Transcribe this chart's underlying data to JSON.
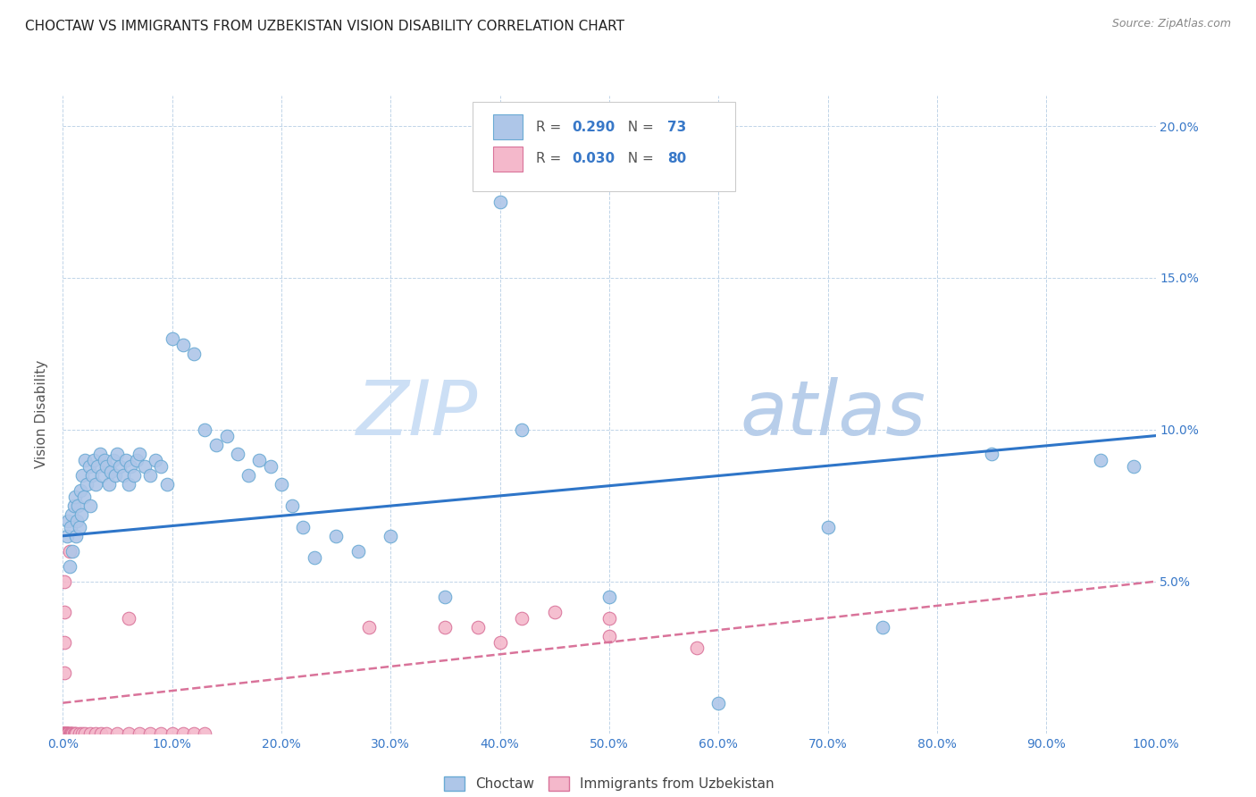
{
  "title": "CHOCTAW VS IMMIGRANTS FROM UZBEKISTAN VISION DISABILITY CORRELATION CHART",
  "source": "Source: ZipAtlas.com",
  "ylabel": "Vision Disability",
  "xmin": 0.0,
  "xmax": 1.0,
  "ymin": 0.0,
  "ymax": 0.21,
  "xticks": [
    0.0,
    0.1,
    0.2,
    0.3,
    0.4,
    0.5,
    0.6,
    0.7,
    0.8,
    0.9,
    1.0
  ],
  "xticklabels": [
    "0.0%",
    "10.0%",
    "20.0%",
    "30.0%",
    "40.0%",
    "50.0%",
    "60.0%",
    "70.0%",
    "80.0%",
    "90.0%",
    "100.0%"
  ],
  "yticks": [
    0.0,
    0.05,
    0.1,
    0.15,
    0.2
  ],
  "yticklabels_right": [
    "",
    "5.0%",
    "10.0%",
    "15.0%",
    "20.0%"
  ],
  "choctaw_color": "#aec6e8",
  "choctaw_edge_color": "#6aaad4",
  "uzbekistan_color": "#f4b8cb",
  "uzbekistan_edge_color": "#d9739a",
  "choctaw_line_color": "#2e75c8",
  "uzbekistan_line_color": "#d9739a",
  "watermark_zip_color": "#ccdff0",
  "watermark_atlas_color": "#c8d8e8",
  "R_choctaw": "0.290",
  "N_choctaw": "73",
  "R_uzbekistan": "0.030",
  "N_uzbekistan": "80",
  "legend_label_choctaw": "Choctaw",
  "legend_label_uzbekistan": "Immigrants from Uzbekistan",
  "choctaw_line_x0": 0.0,
  "choctaw_line_y0": 0.065,
  "choctaw_line_x1": 1.0,
  "choctaw_line_y1": 0.098,
  "uzbekistan_line_x0": 0.0,
  "uzbekistan_line_y0": 0.01,
  "uzbekistan_line_x1": 1.0,
  "uzbekistan_line_y1": 0.05,
  "choctaw_x": [
    0.004,
    0.005,
    0.006,
    0.007,
    0.008,
    0.009,
    0.01,
    0.011,
    0.012,
    0.013,
    0.014,
    0.015,
    0.016,
    0.017,
    0.018,
    0.019,
    0.02,
    0.022,
    0.024,
    0.025,
    0.027,
    0.028,
    0.03,
    0.032,
    0.034,
    0.036,
    0.038,
    0.04,
    0.042,
    0.044,
    0.046,
    0.048,
    0.05,
    0.052,
    0.055,
    0.058,
    0.06,
    0.062,
    0.065,
    0.068,
    0.07,
    0.075,
    0.08,
    0.085,
    0.09,
    0.095,
    0.1,
    0.11,
    0.12,
    0.13,
    0.14,
    0.15,
    0.16,
    0.17,
    0.18,
    0.19,
    0.2,
    0.21,
    0.22,
    0.23,
    0.25,
    0.27,
    0.3,
    0.35,
    0.4,
    0.42,
    0.5,
    0.6,
    0.7,
    0.75,
    0.85,
    0.95,
    0.98
  ],
  "choctaw_y": [
    0.065,
    0.07,
    0.055,
    0.068,
    0.072,
    0.06,
    0.075,
    0.078,
    0.065,
    0.07,
    0.075,
    0.068,
    0.08,
    0.072,
    0.085,
    0.078,
    0.09,
    0.082,
    0.088,
    0.075,
    0.085,
    0.09,
    0.082,
    0.088,
    0.092,
    0.085,
    0.09,
    0.088,
    0.082,
    0.086,
    0.09,
    0.085,
    0.092,
    0.088,
    0.085,
    0.09,
    0.082,
    0.088,
    0.085,
    0.09,
    0.092,
    0.088,
    0.085,
    0.09,
    0.088,
    0.082,
    0.13,
    0.128,
    0.125,
    0.1,
    0.095,
    0.098,
    0.092,
    0.085,
    0.09,
    0.088,
    0.082,
    0.075,
    0.068,
    0.058,
    0.065,
    0.06,
    0.065,
    0.045,
    0.175,
    0.1,
    0.045,
    0.01,
    0.068,
    0.035,
    0.092,
    0.09,
    0.088
  ],
  "uzbekistan_x": [
    0.001,
    0.001,
    0.001,
    0.001,
    0.001,
    0.001,
    0.001,
    0.001,
    0.001,
    0.001,
    0.001,
    0.001,
    0.001,
    0.001,
    0.001,
    0.001,
    0.001,
    0.001,
    0.001,
    0.001,
    0.002,
    0.002,
    0.002,
    0.002,
    0.002,
    0.002,
    0.002,
    0.002,
    0.002,
    0.002,
    0.003,
    0.003,
    0.003,
    0.003,
    0.003,
    0.003,
    0.004,
    0.004,
    0.004,
    0.004,
    0.005,
    0.005,
    0.005,
    0.005,
    0.006,
    0.006,
    0.007,
    0.007,
    0.008,
    0.008,
    0.009,
    0.01,
    0.011,
    0.012,
    0.015,
    0.018,
    0.02,
    0.025,
    0.03,
    0.035,
    0.04,
    0.05,
    0.06,
    0.07,
    0.08,
    0.09,
    0.1,
    0.11,
    0.12,
    0.13,
    0.38,
    0.42,
    0.45,
    0.5,
    0.58,
    0.35,
    0.4,
    0.28,
    0.06,
    0.5
  ],
  "uzbekistan_y": [
    0.0,
    0.0,
    0.0,
    0.0,
    0.0,
    0.0,
    0.0,
    0.0,
    0.0,
    0.0,
    0.0,
    0.0,
    0.0,
    0.0,
    0.0,
    0.0,
    0.02,
    0.03,
    0.04,
    0.05,
    0.0,
    0.0,
    0.0,
    0.0,
    0.0,
    0.0,
    0.0,
    0.0,
    0.0,
    0.0,
    0.0,
    0.0,
    0.0,
    0.0,
    0.0,
    0.0,
    0.0,
    0.0,
    0.0,
    0.0,
    0.0,
    0.0,
    0.0,
    0.0,
    0.06,
    0.0,
    0.0,
    0.0,
    0.0,
    0.0,
    0.0,
    0.0,
    0.0,
    0.0,
    0.0,
    0.0,
    0.0,
    0.0,
    0.0,
    0.0,
    0.0,
    0.0,
    0.0,
    0.0,
    0.0,
    0.0,
    0.0,
    0.0,
    0.0,
    0.0,
    0.035,
    0.038,
    0.04,
    0.038,
    0.028,
    0.035,
    0.03,
    0.035,
    0.038,
    0.032
  ]
}
